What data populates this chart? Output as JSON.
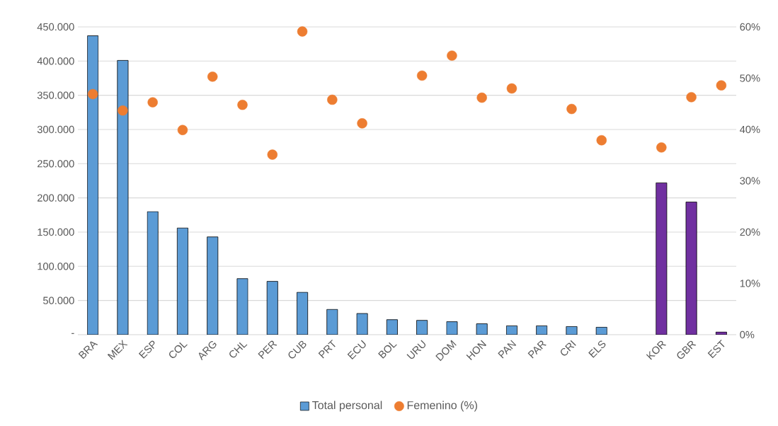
{
  "chart_data": {
    "type": "bar",
    "categories": [
      "BRA",
      "MEX",
      "ESP",
      "COL",
      "ARG",
      "CHL",
      "PER",
      "CUB",
      "PRT",
      "ECU",
      "BOL",
      "URU",
      "DOM",
      "HON",
      "PAN",
      "PAR",
      "CRI",
      "ELS",
      null,
      "KOR",
      "GBR",
      "EST"
    ],
    "series": [
      {
        "name": "Total personal",
        "colors": [
          "#5b9bd5",
          "#5b9bd5",
          "#5b9bd5",
          "#5b9bd5",
          "#5b9bd5",
          "#5b9bd5",
          "#5b9bd5",
          "#5b9bd5",
          "#5b9bd5",
          "#5b9bd5",
          "#5b9bd5",
          "#5b9bd5",
          "#5b9bd5",
          "#5b9bd5",
          "#5b9bd5",
          "#5b9bd5",
          "#5b9bd5",
          "#5b9bd5",
          "#5b9bd5",
          "#7030a0",
          "#7030a0",
          "#7030a0"
        ],
        "values": [
          437000,
          401000,
          180000,
          156000,
          143000,
          82000,
          78000,
          62000,
          37000,
          31000,
          22000,
          21000,
          19000,
          16000,
          13000,
          13000,
          12000,
          11000,
          null,
          222000,
          194000,
          4000
        ]
      },
      {
        "name": "Femenino (%)",
        "type": "scatter",
        "axis": "y2",
        "marker": "circle",
        "color": "#ed7d31",
        "values": [
          46.9,
          43.7,
          45.3,
          39.9,
          50.3,
          44.8,
          35.1,
          59.1,
          45.8,
          41.2,
          null,
          50.5,
          54.4,
          46.2,
          48.0,
          null,
          44.0,
          37.9,
          null,
          36.5,
          46.3,
          48.6
        ]
      }
    ],
    "ylim": [
      0,
      450000
    ],
    "yticks": [
      {
        "value": 0,
        "label": "-"
      },
      {
        "value": 50000,
        "label": "50.000"
      },
      {
        "value": 100000,
        "label": "100.000"
      },
      {
        "value": 150000,
        "label": "150.000"
      },
      {
        "value": 200000,
        "label": "200.000"
      },
      {
        "value": 250000,
        "label": "250.000"
      },
      {
        "value": 300000,
        "label": "300.000"
      },
      {
        "value": 350000,
        "label": "350.000"
      },
      {
        "value": 400000,
        "label": "400.000"
      },
      {
        "value": 450000,
        "label": "450.000"
      }
    ],
    "y2lim": [
      0,
      60
    ],
    "y2ticks": [
      {
        "value": 0,
        "label": "0%"
      },
      {
        "value": 10,
        "label": "10%"
      },
      {
        "value": 20,
        "label": "20%"
      },
      {
        "value": 30,
        "label": "30%"
      },
      {
        "value": 40,
        "label": "40%"
      },
      {
        "value": 50,
        "label": "50%"
      },
      {
        "value": 60,
        "label": "60%"
      }
    ],
    "grid": "y",
    "legend": "bottom"
  }
}
